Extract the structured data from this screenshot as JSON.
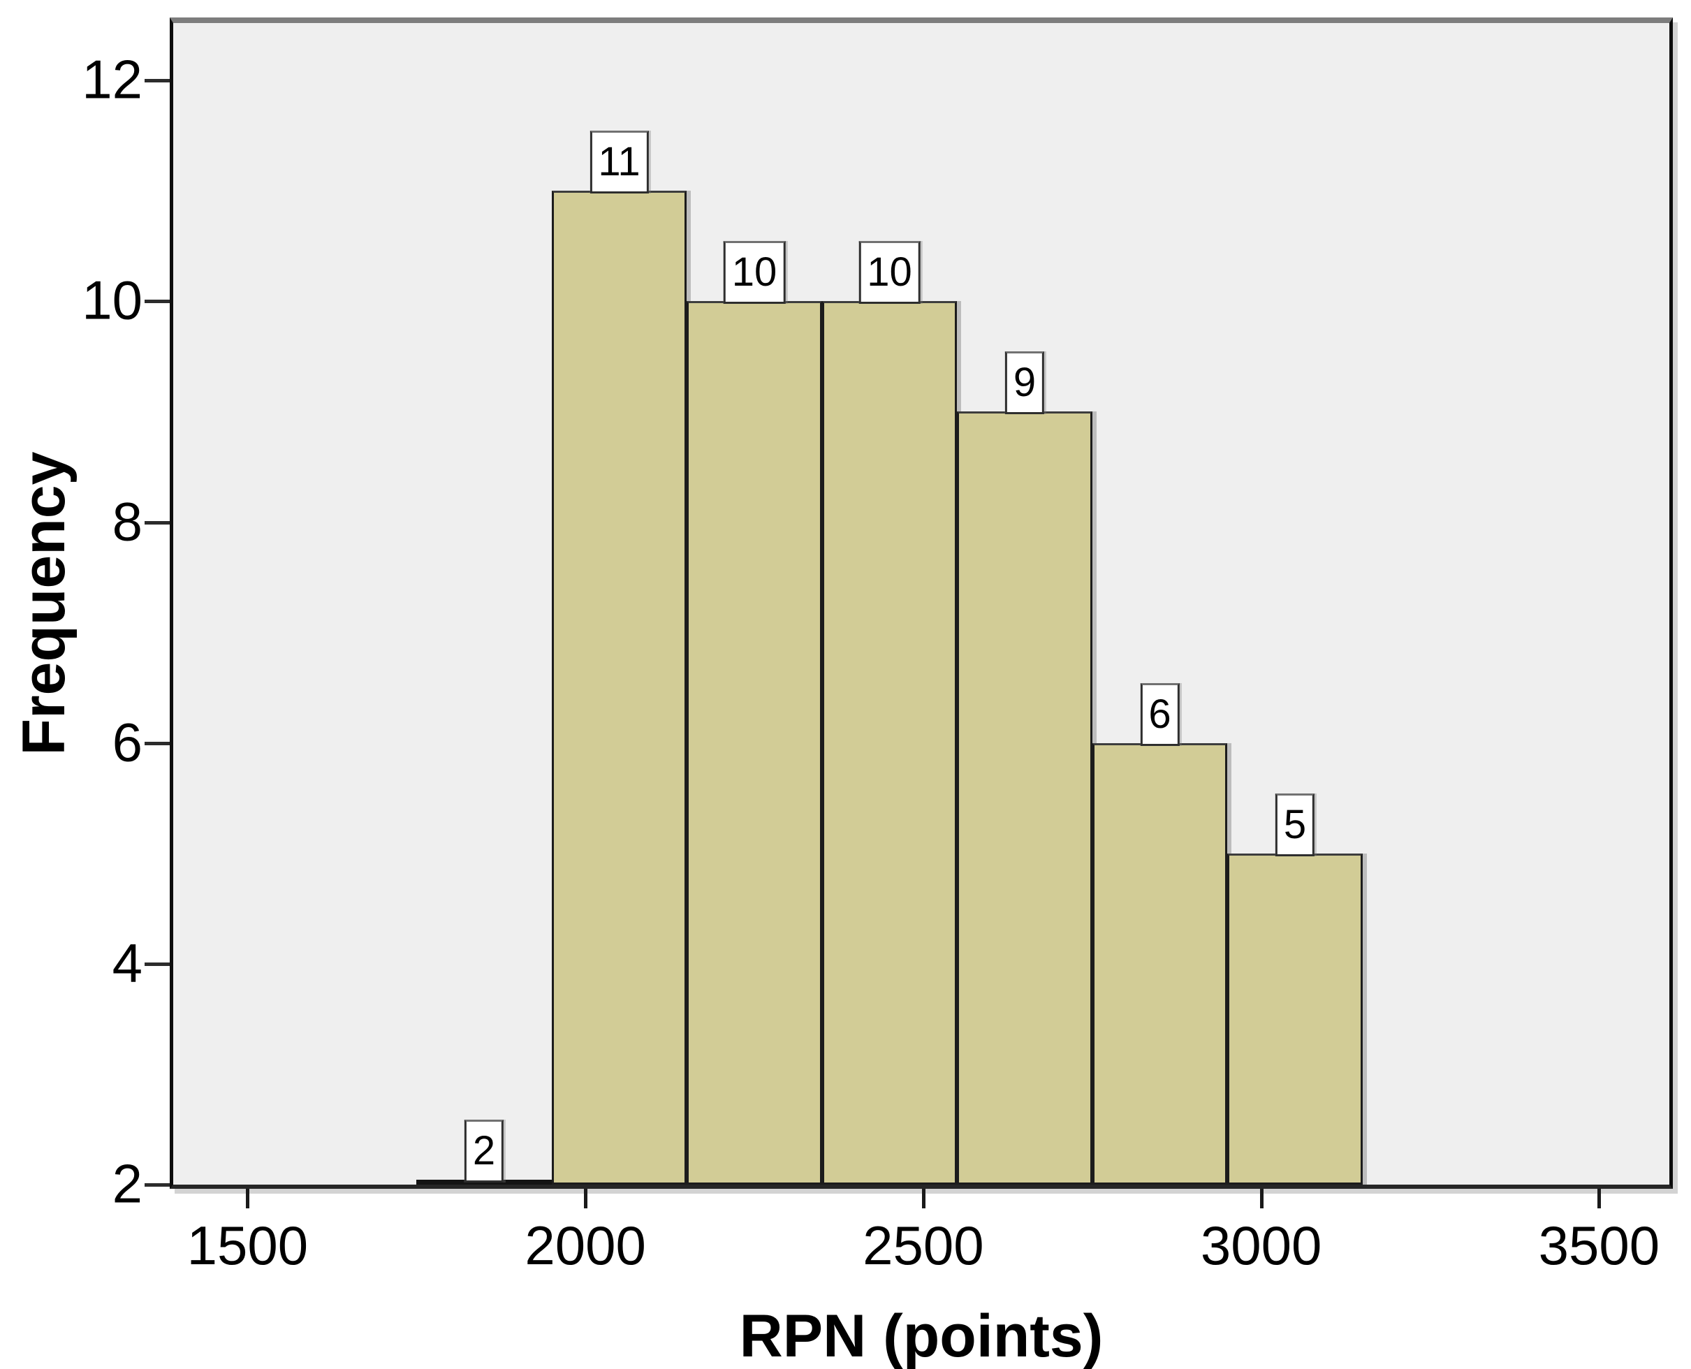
{
  "chart_data": {
    "type": "bar",
    "subtype": "histogram",
    "title": "",
    "xlabel": "RPN (points)",
    "ylabel": "Frequency",
    "x_tick_values": [
      1500,
      2000,
      2500,
      3000,
      3500
    ],
    "x_tick_labels": [
      "1500",
      "2000",
      "2500",
      "3000",
      "3500"
    ],
    "y_tick_values": [
      2,
      4,
      6,
      8,
      10,
      12
    ],
    "y_tick_labels": [
      "2",
      "4",
      "6",
      "8",
      "10",
      "12"
    ],
    "xlim": [
      1390,
      3604
    ],
    "ylim": [
      2,
      12.52
    ],
    "grid": false,
    "legend": "none",
    "bin_width": 200,
    "bars": [
      {
        "bin_start": 1750,
        "bin_end": 1950,
        "frequency": 2,
        "label": "2"
      },
      {
        "bin_start": 1950,
        "bin_end": 2150,
        "frequency": 11,
        "label": "11"
      },
      {
        "bin_start": 2150,
        "bin_end": 2350,
        "frequency": 10,
        "label": "10"
      },
      {
        "bin_start": 2350,
        "bin_end": 2550,
        "frequency": 10,
        "label": "10"
      },
      {
        "bin_start": 2550,
        "bin_end": 2750,
        "frequency": 9,
        "label": "9"
      },
      {
        "bin_start": 2750,
        "bin_end": 2950,
        "frequency": 6,
        "label": "6"
      },
      {
        "bin_start": 2950,
        "bin_end": 3150,
        "frequency": 5,
        "label": "5"
      }
    ],
    "colors": {
      "bar_fill": "#d2cc96",
      "bar_border": "#1c1c1c",
      "plot_background": "#efefef",
      "page_background": "#ffffff",
      "frame_top": "#7d7d7d",
      "frame_sides": "#0d0d0d",
      "text": "#000000"
    }
  }
}
